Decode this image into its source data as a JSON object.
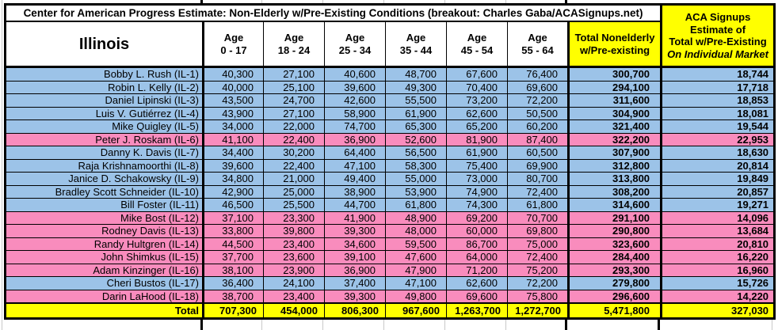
{
  "title": "Center for American Progress Estimate: Non-Elderly w/Pre-Existing Conditions (breakout: Charles Gaba/ACASignups.net)",
  "state": "Illinois",
  "headers": {
    "ages": [
      {
        "top": "Age",
        "bottom": "0 - 17"
      },
      {
        "top": "Age",
        "bottom": "18 - 24"
      },
      {
        "top": "Age",
        "bottom": "25 - 34"
      },
      {
        "top": "Age",
        "bottom": "35 - 44"
      },
      {
        "top": "Age",
        "bottom": "45 - 54"
      },
      {
        "top": "Age",
        "bottom": "55 - 64"
      }
    ],
    "total": {
      "line1": "Total Nonelderly",
      "line2": "w/Pre-existing"
    },
    "aca": {
      "line1": "ACA Signups",
      "line2": "Estimate of",
      "line3": "Total w/Pre-Existing",
      "line4": "On Individual Market"
    }
  },
  "colors": {
    "blue": "#9CC3E8",
    "pink": "#F98CBD",
    "yellow": "#FFFF00"
  },
  "rows": [
    {
      "name": "Bobby L. Rush (IL-1)",
      "color": "blue",
      "ages": [
        "40,300",
        "27,100",
        "40,600",
        "48,700",
        "67,600",
        "76,400"
      ],
      "total": "300,700",
      "aca": "18,744"
    },
    {
      "name": "Robin L. Kelly (IL-2)",
      "color": "blue",
      "ages": [
        "40,000",
        "25,100",
        "39,600",
        "49,300",
        "70,400",
        "69,600"
      ],
      "total": "294,100",
      "aca": "17,718"
    },
    {
      "name": "Daniel Lipinski (IL-3)",
      "color": "blue",
      "ages": [
        "43,500",
        "24,700",
        "42,600",
        "55,500",
        "73,200",
        "72,200"
      ],
      "total": "311,600",
      "aca": "18,853"
    },
    {
      "name": "Luis V. Gutiérrez (IL-4)",
      "color": "blue",
      "ages": [
        "43,900",
        "27,100",
        "58,900",
        "61,900",
        "62,600",
        "50,500"
      ],
      "total": "304,900",
      "aca": "18,081"
    },
    {
      "name": "Mike Quigley (IL-5)",
      "color": "blue",
      "ages": [
        "34,000",
        "22,000",
        "74,700",
        "65,300",
        "65,200",
        "60,200"
      ],
      "total": "321,400",
      "aca": "19,544"
    },
    {
      "name": "Peter J. Roskam (IL-6)",
      "color": "pink",
      "ages": [
        "41,100",
        "22,400",
        "36,900",
        "52,600",
        "81,900",
        "87,400"
      ],
      "total": "322,200",
      "aca": "22,953"
    },
    {
      "name": "Danny K. Davis (IL-7)",
      "color": "blue",
      "ages": [
        "34,400",
        "30,200",
        "64,400",
        "56,500",
        "61,900",
        "60,500"
      ],
      "total": "307,900",
      "aca": "18,630"
    },
    {
      "name": "Raja Krishnamoorthi (IL-8)",
      "color": "blue",
      "ages": [
        "39,600",
        "22,400",
        "47,100",
        "58,300",
        "75,400",
        "69,900"
      ],
      "total": "312,800",
      "aca": "20,814"
    },
    {
      "name": "Janice D. Schakowsky (IL-9)",
      "color": "blue",
      "ages": [
        "34,800",
        "21,000",
        "49,400",
        "55,000",
        "73,000",
        "80,700"
      ],
      "total": "313,800",
      "aca": "19,849"
    },
    {
      "name": "Bradley Scott Schneider (IL-10)",
      "color": "blue",
      "ages": [
        "42,900",
        "25,000",
        "38,900",
        "53,900",
        "74,900",
        "72,400"
      ],
      "total": "308,200",
      "aca": "20,857"
    },
    {
      "name": "Bill Foster (IL-11)",
      "color": "blue",
      "ages": [
        "46,500",
        "25,500",
        "44,700",
        "61,800",
        "74,300",
        "61,800"
      ],
      "total": "314,600",
      "aca": "19,271"
    },
    {
      "name": "Mike Bost (IL-12)",
      "color": "pink",
      "ages": [
        "37,100",
        "23,300",
        "41,900",
        "48,900",
        "69,200",
        "70,700"
      ],
      "total": "291,100",
      "aca": "14,096"
    },
    {
      "name": "Rodney Davis (IL-13)",
      "color": "pink",
      "ages": [
        "33,800",
        "39,800",
        "39,300",
        "48,000",
        "60,000",
        "69,800"
      ],
      "total": "290,800",
      "aca": "13,684"
    },
    {
      "name": "Randy Hultgren (IL-14)",
      "color": "pink",
      "ages": [
        "44,500",
        "23,400",
        "34,600",
        "59,500",
        "86,700",
        "75,000"
      ],
      "total": "323,600",
      "aca": "20,810"
    },
    {
      "name": "John Shimkus (IL-15)",
      "color": "pink",
      "ages": [
        "37,700",
        "23,600",
        "39,100",
        "47,600",
        "64,000",
        "72,400"
      ],
      "total": "284,400",
      "aca": "16,220"
    },
    {
      "name": "Adam Kinzinger (IL-16)",
      "color": "pink",
      "ages": [
        "38,100",
        "23,900",
        "36,900",
        "47,900",
        "71,200",
        "75,200"
      ],
      "total": "293,300",
      "aca": "16,960"
    },
    {
      "name": "Cheri Bustos (IL-17)",
      "color": "blue",
      "ages": [
        "36,400",
        "24,100",
        "37,400",
        "47,100",
        "62,600",
        "72,200"
      ],
      "total": "279,800",
      "aca": "15,726"
    },
    {
      "name": "Darin LaHood (IL-18)",
      "color": "pink",
      "ages": [
        "38,700",
        "23,400",
        "39,300",
        "49,800",
        "69,600",
        "75,800"
      ],
      "total": "296,600",
      "aca": "14,220"
    }
  ],
  "total_row": {
    "label": "Total",
    "ages": [
      "707,300",
      "454,000",
      "806,300",
      "967,600",
      "1,263,700",
      "1,272,700"
    ],
    "total": "5,471,800",
    "aca": "327,030"
  }
}
